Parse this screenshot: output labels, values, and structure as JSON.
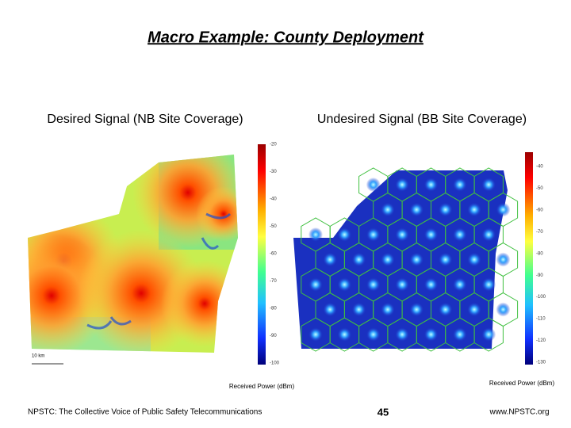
{
  "header": {
    "title": "Macro Example: County Deployment"
  },
  "left_panel": {
    "caption": "Desired Signal (NB Site Coverage)",
    "scale_label": "10 km",
    "colorbar_labels": [
      "-20",
      "-30",
      "-40",
      "-50",
      "-60",
      "-70",
      "-80",
      "-90",
      "-100"
    ],
    "colorbar_title": "Received Power (dBm)"
  },
  "right_panel": {
    "caption": "Undesired Signal (BB Site Coverage)",
    "colorbar_labels": [
      "-40",
      "-50",
      "-60",
      "-70",
      "-80",
      "-90",
      "-100",
      "-110",
      "-120",
      "-130"
    ],
    "colorbar_title": "Received Power (dBm)"
  },
  "footer": {
    "left": "NPSTC:  The Collective Voice of Public Safety Telecommunications",
    "page": "45",
    "right": "www.NPSTC.org"
  }
}
